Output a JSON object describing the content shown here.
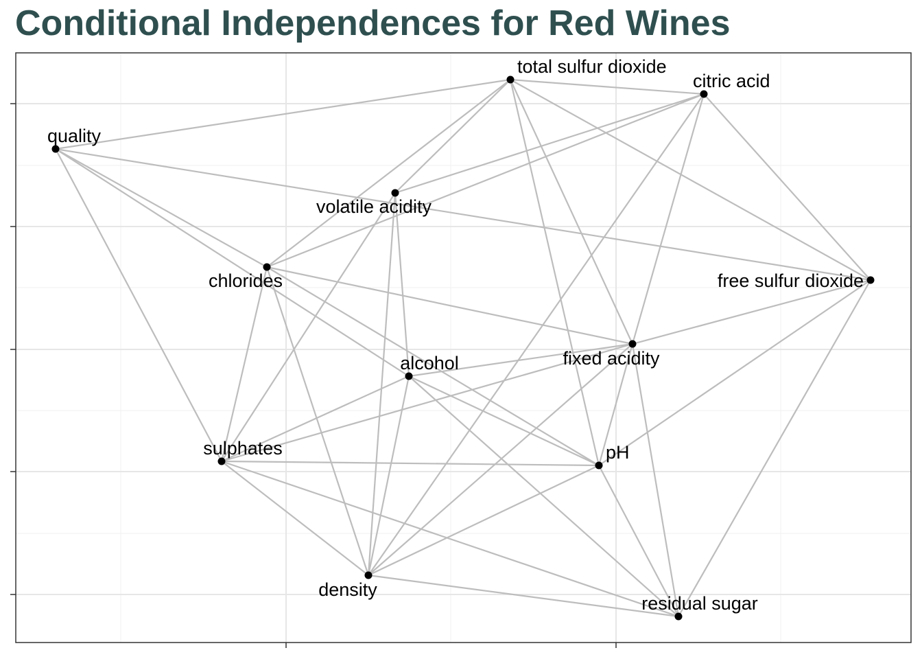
{
  "title": "Conditional Independences for Red Wines",
  "colors": {
    "title": "#2f4f4f",
    "edge": "#bdbdbd",
    "node": "#000000",
    "grid_major": "#e6e6e6",
    "grid_minor": "#f2f2f2",
    "panel_border": "#333333"
  },
  "nodes": [
    {
      "id": "total-sulfur-dioxide",
      "label": "total sulfur dioxide"
    },
    {
      "id": "citric-acid",
      "label": "citric acid"
    },
    {
      "id": "quality",
      "label": "quality"
    },
    {
      "id": "volatile-acidity",
      "label": "volatile acidity"
    },
    {
      "id": "chlorides",
      "label": "chlorides"
    },
    {
      "id": "free-sulfur-dioxide",
      "label": "free sulfur dioxide"
    },
    {
      "id": "alcohol",
      "label": "alcohol"
    },
    {
      "id": "fixed-acidity",
      "label": "fixed acidity"
    },
    {
      "id": "sulphates",
      "label": "sulphates"
    },
    {
      "id": "ph",
      "label": "pH"
    },
    {
      "id": "density",
      "label": "density"
    },
    {
      "id": "residual-sugar",
      "label": "residual sugar"
    }
  ],
  "edges": [
    [
      "quality",
      "total-sulfur-dioxide"
    ],
    [
      "quality",
      "free-sulfur-dioxide"
    ],
    [
      "quality",
      "chlorides"
    ],
    [
      "quality",
      "alcohol"
    ],
    [
      "quality",
      "sulphates"
    ],
    [
      "total-sulfur-dioxide",
      "citric-acid"
    ],
    [
      "total-sulfur-dioxide",
      "volatile-acidity"
    ],
    [
      "total-sulfur-dioxide",
      "chlorides"
    ],
    [
      "total-sulfur-dioxide",
      "free-sulfur-dioxide"
    ],
    [
      "total-sulfur-dioxide",
      "fixed-acidity"
    ],
    [
      "total-sulfur-dioxide",
      "ph"
    ],
    [
      "citric-acid",
      "volatile-acidity"
    ],
    [
      "citric-acid",
      "chlorides"
    ],
    [
      "citric-acid",
      "free-sulfur-dioxide"
    ],
    [
      "citric-acid",
      "fixed-acidity"
    ],
    [
      "citric-acid",
      "density"
    ],
    [
      "volatile-acidity",
      "alcohol"
    ],
    [
      "volatile-acidity",
      "sulphates"
    ],
    [
      "volatile-acidity",
      "density"
    ],
    [
      "chlorides",
      "fixed-acidity"
    ],
    [
      "chlorides",
      "sulphates"
    ],
    [
      "chlorides",
      "density"
    ],
    [
      "chlorides",
      "ph"
    ],
    [
      "free-sulfur-dioxide",
      "fixed-acidity"
    ],
    [
      "free-sulfur-dioxide",
      "ph"
    ],
    [
      "free-sulfur-dioxide",
      "residual-sugar"
    ],
    [
      "alcohol",
      "fixed-acidity"
    ],
    [
      "alcohol",
      "sulphates"
    ],
    [
      "alcohol",
      "ph"
    ],
    [
      "alcohol",
      "density"
    ],
    [
      "alcohol",
      "residual-sugar"
    ],
    [
      "fixed-acidity",
      "sulphates"
    ],
    [
      "fixed-acidity",
      "ph"
    ],
    [
      "fixed-acidity",
      "density"
    ],
    [
      "fixed-acidity",
      "residual-sugar"
    ],
    [
      "sulphates",
      "ph"
    ],
    [
      "sulphates",
      "density"
    ],
    [
      "sulphates",
      "residual-sugar"
    ],
    [
      "ph",
      "density"
    ],
    [
      "ph",
      "residual-sugar"
    ],
    [
      "density",
      "residual-sugar"
    ]
  ]
}
